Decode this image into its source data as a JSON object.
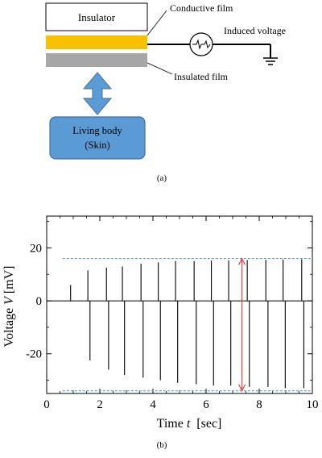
{
  "diagram": {
    "insulator_label": "Insulator",
    "conductive_film_label": "Conductive film",
    "induced_voltage_label": "Induced voltage",
    "insulated_film_label": "Insulated film",
    "living_body_label_line1": "Living body",
    "living_body_label_line2": "(Skin)",
    "panel_a_caption": "(a)",
    "colors": {
      "conductive_film": "#F9C000",
      "insulated_film": "#A6A6A6",
      "living_body": "#5B9BD5",
      "living_body_border": "#41719C",
      "arrow": "#5B9BD5"
    },
    "icons": {
      "source": "ac-voltage-source-icon",
      "ground": "ground-icon"
    }
  },
  "panel_b_caption": "(b)",
  "chart_data": {
    "type": "line",
    "xlabel": "Time",
    "xlabel_var": "t",
    "xlabel_unit": "[sec]",
    "ylabel": "Voltage",
    "ylabel_var": "V",
    "ylabel_unit": "[mV]",
    "xlim": [
      0,
      10
    ],
    "ylim": [
      -35,
      32
    ],
    "xticks": [
      "0",
      "2",
      "4",
      "6",
      "8",
      "10"
    ],
    "yticks": [
      "20",
      "0",
      "-20"
    ],
    "baseline": 0,
    "upper_reference": 16,
    "lower_reference": -34,
    "reference_line_color": "#5B9BD5",
    "signal_color": "#000000",
    "amplitude_marker": {
      "x": 7.35,
      "from": 16,
      "to": -34,
      "color": "#E8413C"
    },
    "series": [
      {
        "times": [
          0.9,
          1.55,
          2.25,
          2.85,
          3.55,
          4.2,
          4.85,
          5.55,
          6.2,
          6.85,
          7.55,
          8.25,
          8.9,
          9.6
        ],
        "peaks": [
          6,
          11.5,
          12.5,
          13,
          14,
          14.5,
          15,
          15,
          15.2,
          15.3,
          15.4,
          15.5,
          15.6,
          15.7
        ],
        "troughs": [
          null,
          -22.5,
          -26,
          -28,
          -29,
          -30,
          -31,
          -31.5,
          -32,
          -32,
          -32.5,
          -32.5,
          -33,
          -33
        ]
      }
    ]
  }
}
